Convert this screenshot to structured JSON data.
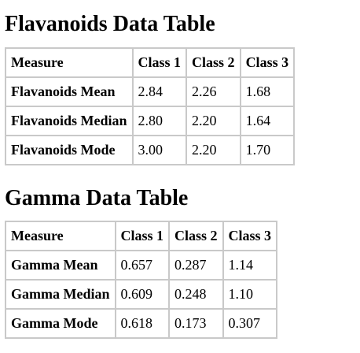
{
  "flavanoids": {
    "title": "Flavanoids Data Table",
    "headers": [
      "Measure",
      "Class 1",
      "Class 2",
      "Class 3"
    ],
    "rows": [
      {
        "label": "Flavanoids Mean",
        "c1": "2.84",
        "c2": "2.26",
        "c3": "1.68"
      },
      {
        "label": "Flavanoids Median",
        "c1": "2.80",
        "c2": "2.20",
        "c3": "1.64"
      },
      {
        "label": "Flavanoids Mode",
        "c1": "3.00",
        "c2": "2.20",
        "c3": "1.70"
      }
    ]
  },
  "gamma": {
    "title": "Gamma Data Table",
    "headers": [
      "Measure",
      "Class 1",
      "Class 2",
      "Class 3"
    ],
    "rows": [
      {
        "label": "Gamma Mean",
        "c1": "0.657",
        "c2": "0.287",
        "c3": "1.14"
      },
      {
        "label": "Gamma Median",
        "c1": "0.609",
        "c2": "0.248",
        "c3": "1.10"
      },
      {
        "label": "Gamma Mode",
        "c1": "0.618",
        "c2": "0.173",
        "c3": "0.307"
      }
    ]
  },
  "colors": {
    "border": "#c9c9c9",
    "text": "#000000",
    "background": "#ffffff"
  }
}
